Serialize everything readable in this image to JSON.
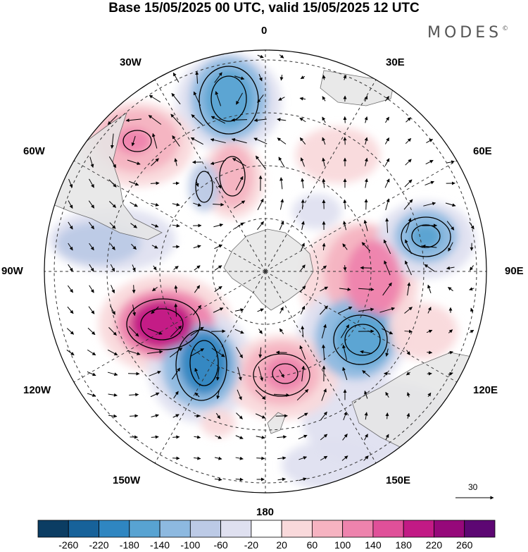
{
  "title": "Base 15/05/2025 00 UTC, valid 15/05/2025 12 UTC",
  "brand": {
    "name": "MODES",
    "mark": "©"
  },
  "map": {
    "projection": "south-polar-stereographic",
    "longitude_labels": [
      "0",
      "30E",
      "60E",
      "90E",
      "120E",
      "150E",
      "180",
      "150W",
      "120W",
      "90W",
      "60W",
      "30W"
    ],
    "reference_vector": {
      "value": "30"
    },
    "colors": {
      "land": "#e6e6e6",
      "coast": "#555555",
      "grid": "#333333",
      "vector": "#000000",
      "contour": "#000000"
    }
  },
  "colorbar": {
    "tick_labels": [
      "-260",
      "-220",
      "-180",
      "-140",
      "-100",
      "-60",
      "-20",
      "20",
      "60",
      "100",
      "140",
      "180",
      "220",
      "260"
    ],
    "colors": [
      "#0b3d63",
      "#17629a",
      "#2f86c1",
      "#58a3d2",
      "#8db9e0",
      "#bccae6",
      "#dfe0f0",
      "#ffffff",
      "#f9d9db",
      "#f6b3c1",
      "#ee83ad",
      "#e05099",
      "#c21a85",
      "#96087a",
      "#5d0773"
    ]
  }
}
